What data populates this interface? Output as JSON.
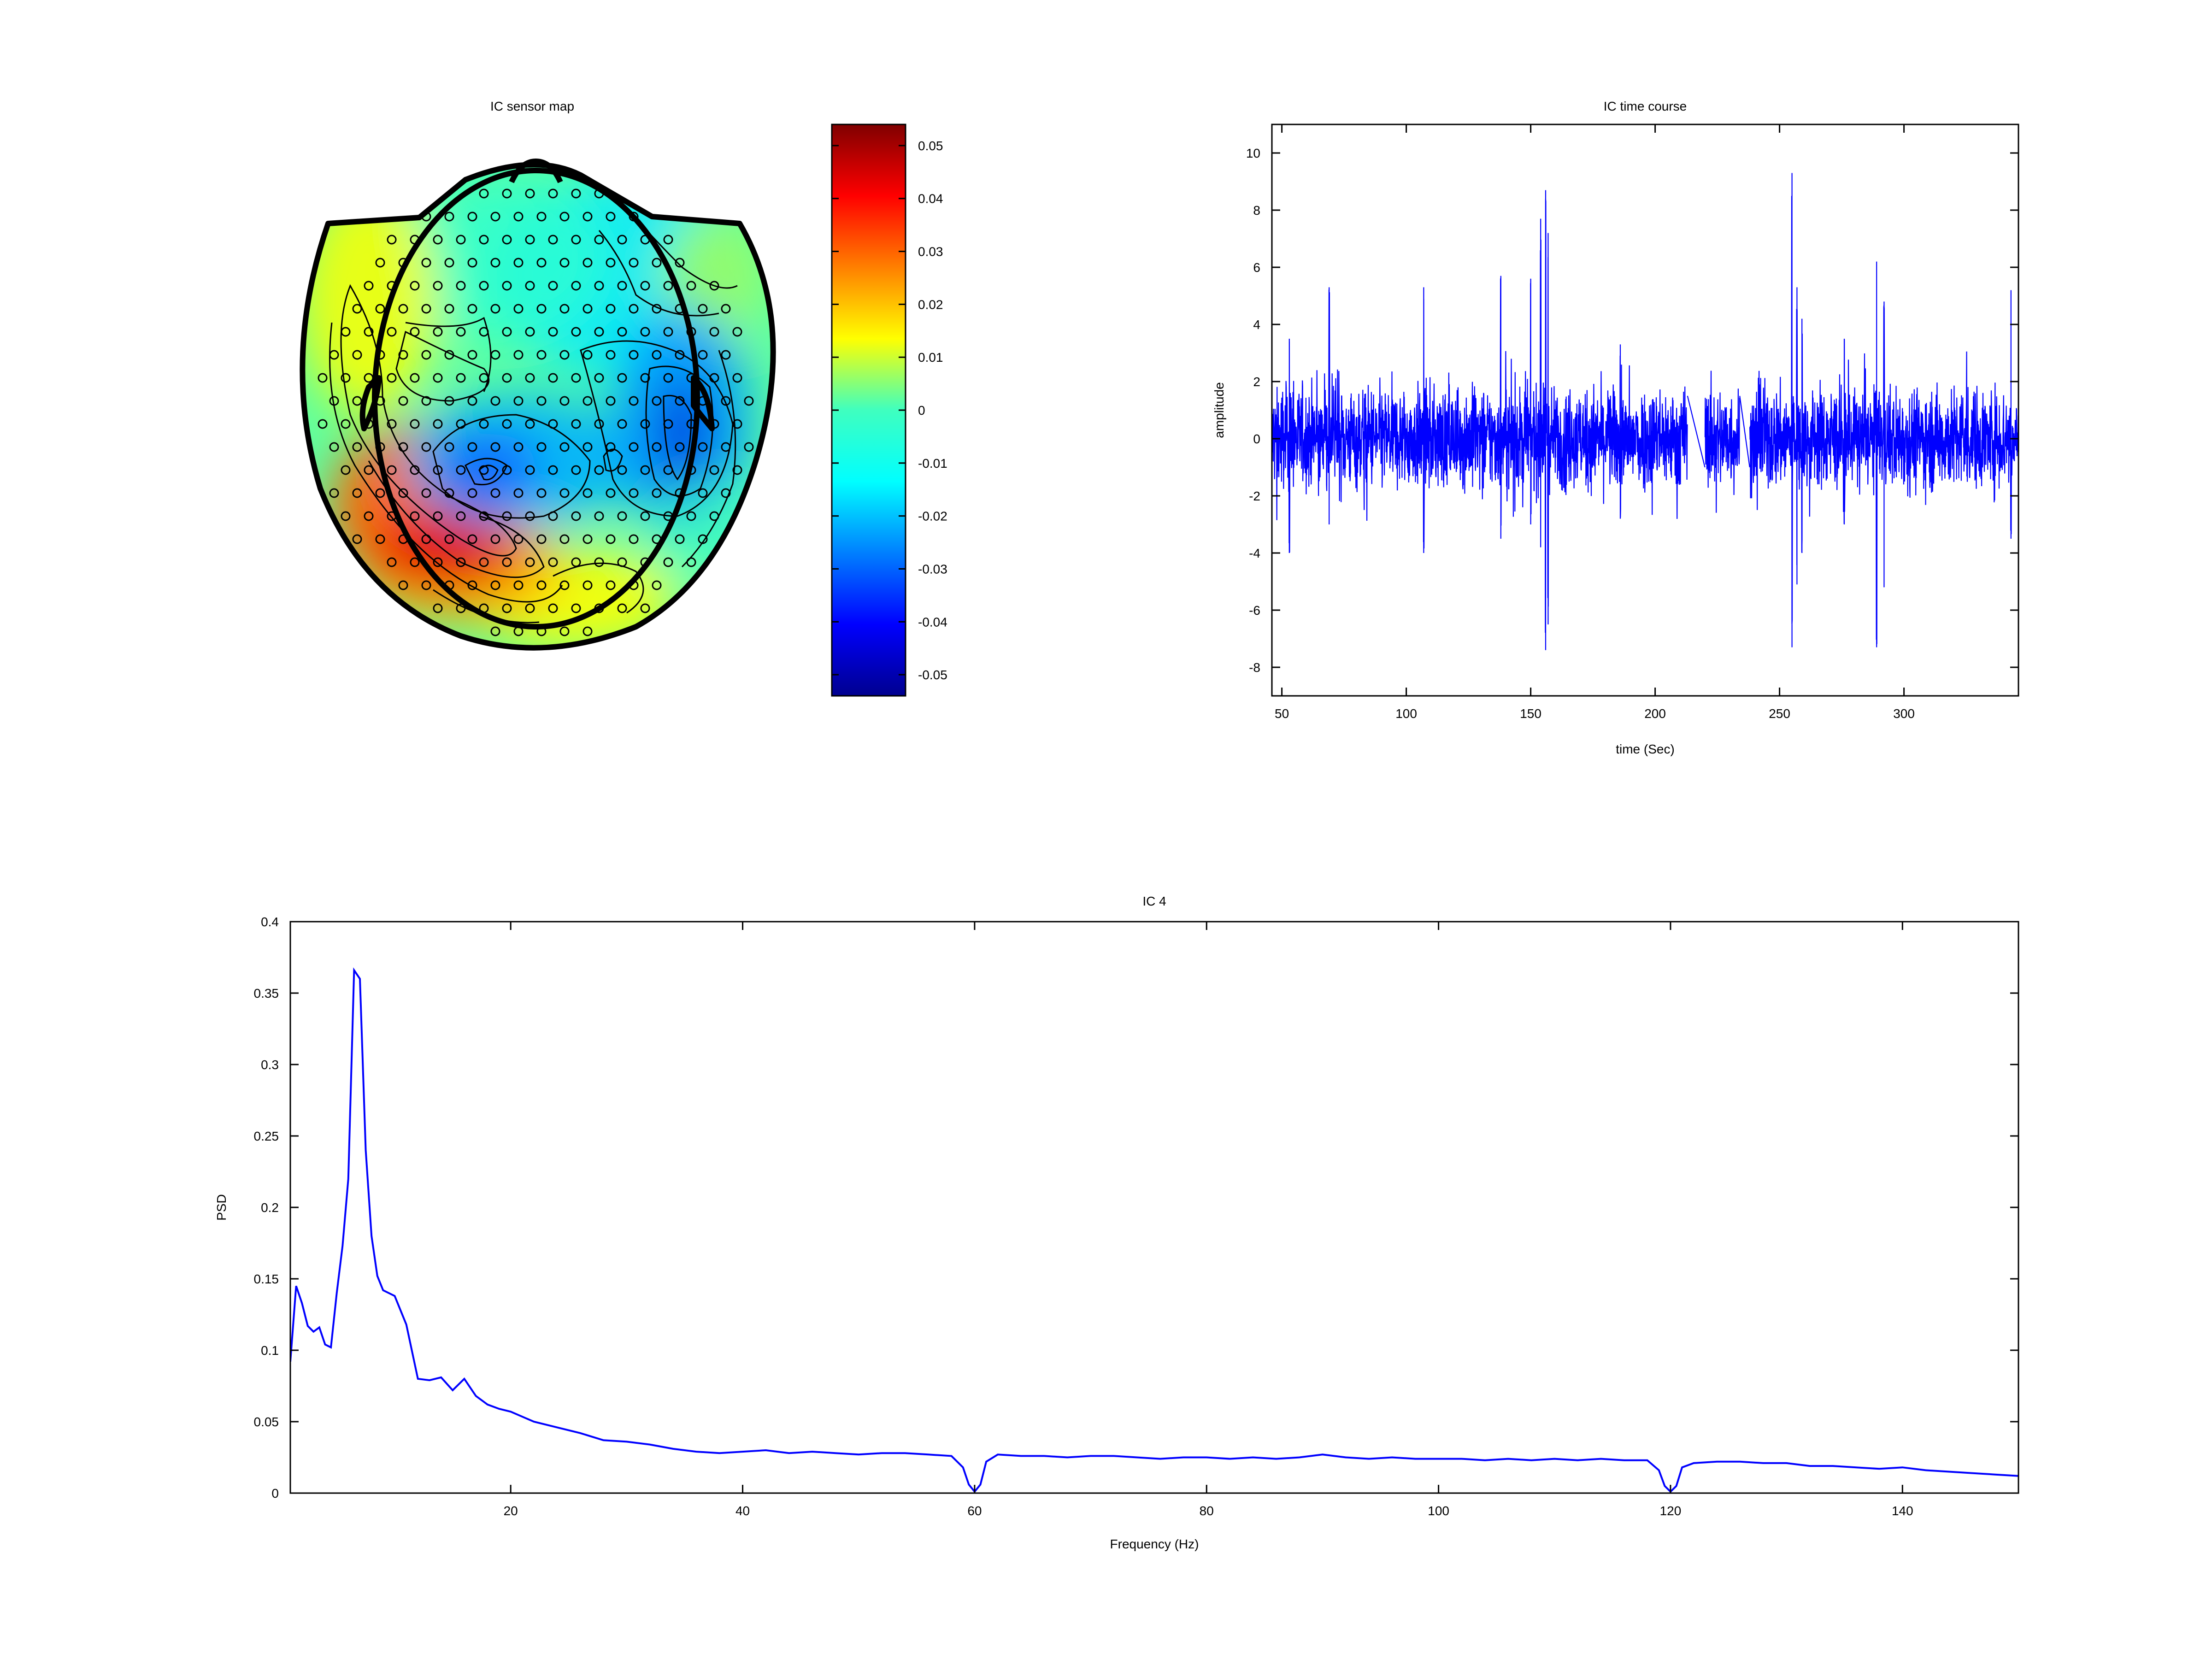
{
  "colors": {
    "series": "#0000ff",
    "axis": "#000000",
    "head_outline": "#000000"
  },
  "sensor_map": {
    "title": "IC sensor map",
    "colorbar_ticks": [
      "0.05",
      "0.04",
      "0.03",
      "0.02",
      "0.01",
      "0",
      "-0.01",
      "-0.02",
      "-0.03",
      "-0.04",
      "-0.05"
    ],
    "colorbar_values": [
      0.05,
      0.04,
      0.03,
      0.02,
      0.01,
      0,
      -0.01,
      -0.02,
      -0.03,
      -0.04,
      -0.05
    ],
    "colorbar_range": [
      -0.054,
      0.054
    ],
    "colormap": "jet",
    "head_view": "top-down, nose up",
    "blobs": [
      {
        "label": "positive-left-posterior",
        "value": 0.05
      },
      {
        "label": "negative-center",
        "value": -0.03
      },
      {
        "label": "negative-right",
        "value": -0.045
      },
      {
        "label": "positive-left-lateral",
        "value": 0.015
      },
      {
        "label": "positive-right-front",
        "value": 0.012
      }
    ]
  },
  "time_course": {
    "title": "IC time course",
    "xlabel": "time (Sec)",
    "ylabel": "amplitude",
    "xlim": [
      46,
      346
    ],
    "ylim": [
      -9,
      11
    ],
    "xticks": [
      50,
      100,
      150,
      200,
      250,
      300
    ],
    "yticks": [
      10,
      8,
      6,
      4,
      2,
      0,
      -2,
      -4,
      -6,
      -8
    ],
    "type": "line",
    "baseline_envelope": [
      -2,
      2
    ],
    "gaps": [
      [
        213,
        220
      ],
      [
        234,
        238
      ]
    ],
    "spikes": [
      {
        "t": 53,
        "min": -4,
        "max": 3.5
      },
      {
        "t": 69,
        "min": -3,
        "max": 5.3
      },
      {
        "t": 107,
        "min": -4,
        "max": 5.3
      },
      {
        "t": 138,
        "min": -3.5,
        "max": 5.7
      },
      {
        "t": 150,
        "min": -3,
        "max": 5.6
      },
      {
        "t": 154,
        "min": -3.8,
        "max": 7.7
      },
      {
        "t": 156,
        "min": -7.4,
        "max": 8.7
      },
      {
        "t": 157,
        "min": -6.5,
        "max": 7.2
      },
      {
        "t": 186,
        "min": -2.8,
        "max": 3.3
      },
      {
        "t": 255,
        "min": -7.3,
        "max": 9.3
      },
      {
        "t": 257,
        "min": -5.1,
        "max": 5.3
      },
      {
        "t": 259,
        "min": -4,
        "max": 4.2
      },
      {
        "t": 276,
        "min": -3,
        "max": 3.5
      },
      {
        "t": 289,
        "min": -7.3,
        "max": 6.2
      },
      {
        "t": 292,
        "min": -5.2,
        "max": 4.8
      },
      {
        "t": 343,
        "min": -3.5,
        "max": 5.2
      }
    ]
  },
  "chart_data": [
    {
      "type": "line",
      "title": "IC 4",
      "xlabel": "Frequency (Hz)",
      "ylabel": "PSD",
      "xlim": [
        1,
        150
      ],
      "ylim": [
        0,
        0.4
      ],
      "xticks": [
        20,
        40,
        60,
        80,
        100,
        120,
        140
      ],
      "yticks": [
        0,
        0.05,
        0.1,
        0.15,
        0.2,
        0.25,
        0.3,
        0.35,
        0.4
      ],
      "series": [
        {
          "x": [
            1,
            1.5,
            2,
            2.5,
            3,
            3.5,
            4,
            4.5,
            5,
            5.5,
            6,
            6.5,
            7,
            7.5,
            8,
            8.5,
            9,
            9.5,
            10,
            11,
            12,
            13,
            14,
            15,
            16,
            17,
            18,
            19,
            20,
            22,
            24,
            26,
            28,
            30,
            32,
            34,
            36,
            38,
            40,
            42,
            44,
            46,
            48,
            50,
            52,
            54,
            56,
            58,
            59,
            59.5,
            60,
            60.5,
            61,
            62,
            64,
            66,
            68,
            70,
            72,
            74,
            76,
            78,
            80,
            82,
            84,
            86,
            88,
            90,
            92,
            94,
            96,
            98,
            100,
            102,
            104,
            106,
            108,
            110,
            112,
            114,
            116,
            118,
            119,
            119.5,
            120,
            120.5,
            121,
            122,
            124,
            126,
            128,
            130,
            132,
            134,
            136,
            138,
            140,
            142,
            144,
            146,
            148,
            150
          ],
          "y": [
            0.092,
            0.145,
            0.133,
            0.117,
            0.113,
            0.116,
            0.104,
            0.102,
            0.14,
            0.173,
            0.22,
            0.366,
            0.36,
            0.24,
            0.18,
            0.152,
            0.142,
            0.14,
            0.138,
            0.118,
            0.08,
            0.079,
            0.081,
            0.072,
            0.08,
            0.068,
            0.062,
            0.059,
            0.057,
            0.05,
            0.046,
            0.042,
            0.037,
            0.036,
            0.034,
            0.031,
            0.029,
            0.028,
            0.029,
            0.03,
            0.028,
            0.029,
            0.028,
            0.027,
            0.028,
            0.028,
            0.027,
            0.026,
            0.018,
            0.006,
            0.001,
            0.006,
            0.022,
            0.027,
            0.026,
            0.026,
            0.025,
            0.026,
            0.026,
            0.025,
            0.024,
            0.025,
            0.025,
            0.024,
            0.025,
            0.024,
            0.025,
            0.027,
            0.025,
            0.024,
            0.025,
            0.024,
            0.024,
            0.024,
            0.023,
            0.024,
            0.023,
            0.024,
            0.023,
            0.024,
            0.023,
            0.023,
            0.016,
            0.005,
            0.001,
            0.005,
            0.018,
            0.021,
            0.022,
            0.022,
            0.021,
            0.021,
            0.019,
            0.019,
            0.018,
            0.017,
            0.018,
            0.016,
            0.015,
            0.014,
            0.013,
            0.012
          ]
        }
      ]
    }
  ]
}
